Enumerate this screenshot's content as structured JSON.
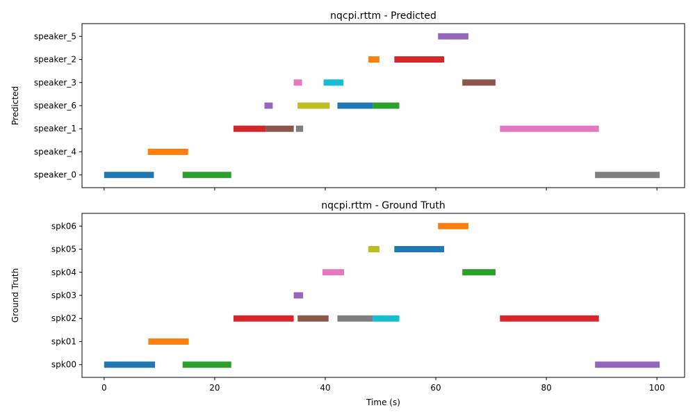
{
  "chart_data": [
    {
      "type": "broken_barh",
      "title": "nqcpi.rttm - Predicted",
      "ylabel": "Predicted",
      "xlabel": "",
      "xlim": [
        -4,
        105
      ],
      "xticks": [
        0,
        20,
        40,
        60,
        80,
        100
      ],
      "show_xtick_labels": false,
      "rows": [
        "speaker_0",
        "speaker_4",
        "speaker_1",
        "speaker_6",
        "speaker_3",
        "speaker_2",
        "speaker_5"
      ],
      "segments": [
        {
          "row": "speaker_0",
          "start": 0.0,
          "end": 9.0,
          "color": "#1f77b4"
        },
        {
          "row": "speaker_0",
          "start": 14.2,
          "end": 23.0,
          "color": "#2ca02c"
        },
        {
          "row": "speaker_0",
          "start": 88.8,
          "end": 100.5,
          "color": "#7f7f7f"
        },
        {
          "row": "speaker_4",
          "start": 7.9,
          "end": 15.2,
          "color": "#ff7f0e"
        },
        {
          "row": "speaker_1",
          "start": 23.4,
          "end": 29.2,
          "color": "#d62728"
        },
        {
          "row": "speaker_1",
          "start": 29.2,
          "end": 34.3,
          "color": "#8c564b"
        },
        {
          "row": "speaker_1",
          "start": 34.7,
          "end": 36.0,
          "color": "#7f7f7f"
        },
        {
          "row": "speaker_1",
          "start": 71.6,
          "end": 89.5,
          "color": "#e377c2"
        },
        {
          "row": "speaker_6",
          "start": 29.0,
          "end": 30.5,
          "color": "#9467bd"
        },
        {
          "row": "speaker_6",
          "start": 35.0,
          "end": 40.8,
          "color": "#bcbd22"
        },
        {
          "row": "speaker_6",
          "start": 42.2,
          "end": 48.6,
          "color": "#1f77b4"
        },
        {
          "row": "speaker_6",
          "start": 48.6,
          "end": 53.4,
          "color": "#2ca02c"
        },
        {
          "row": "speaker_3",
          "start": 34.3,
          "end": 35.8,
          "color": "#e377c2"
        },
        {
          "row": "speaker_3",
          "start": 39.7,
          "end": 43.3,
          "color": "#17becf"
        },
        {
          "row": "speaker_3",
          "start": 64.8,
          "end": 70.8,
          "color": "#8c564b"
        },
        {
          "row": "speaker_2",
          "start": 47.8,
          "end": 49.8,
          "color": "#ff7f0e"
        },
        {
          "row": "speaker_2",
          "start": 52.5,
          "end": 61.5,
          "color": "#d62728"
        },
        {
          "row": "speaker_5",
          "start": 60.4,
          "end": 65.9,
          "color": "#9467bd"
        }
      ]
    },
    {
      "type": "broken_barh",
      "title": "nqcpi.rttm - Ground Truth",
      "ylabel": "Ground Truth",
      "xlabel": "Time (s)",
      "xlim": [
        -4,
        105
      ],
      "xticks": [
        0,
        20,
        40,
        60,
        80,
        100
      ],
      "show_xtick_labels": true,
      "rows": [
        "spk00",
        "spk01",
        "spk02",
        "spk03",
        "spk04",
        "spk05",
        "spk06"
      ],
      "segments": [
        {
          "row": "spk00",
          "start": 0.0,
          "end": 9.2,
          "color": "#1f77b4"
        },
        {
          "row": "spk00",
          "start": 14.2,
          "end": 23.0,
          "color": "#2ca02c"
        },
        {
          "row": "spk00",
          "start": 88.8,
          "end": 100.5,
          "color": "#9467bd"
        },
        {
          "row": "spk01",
          "start": 8.0,
          "end": 15.3,
          "color": "#ff7f0e"
        },
        {
          "row": "spk02",
          "start": 23.4,
          "end": 34.3,
          "color": "#d62728"
        },
        {
          "row": "spk02",
          "start": 35.0,
          "end": 40.6,
          "color": "#8c564b"
        },
        {
          "row": "spk02",
          "start": 42.2,
          "end": 48.6,
          "color": "#7f7f7f"
        },
        {
          "row": "spk02",
          "start": 48.6,
          "end": 53.4,
          "color": "#17becf"
        },
        {
          "row": "spk02",
          "start": 71.6,
          "end": 89.5,
          "color": "#d62728"
        },
        {
          "row": "spk03",
          "start": 34.3,
          "end": 36.0,
          "color": "#9467bd"
        },
        {
          "row": "spk04",
          "start": 39.5,
          "end": 43.4,
          "color": "#e377c2"
        },
        {
          "row": "spk04",
          "start": 64.8,
          "end": 70.8,
          "color": "#2ca02c"
        },
        {
          "row": "spk05",
          "start": 47.8,
          "end": 49.8,
          "color": "#bcbd22"
        },
        {
          "row": "spk05",
          "start": 52.5,
          "end": 61.5,
          "color": "#1f77b4"
        },
        {
          "row": "spk06",
          "start": 60.4,
          "end": 65.9,
          "color": "#ff7f0e"
        }
      ]
    }
  ]
}
